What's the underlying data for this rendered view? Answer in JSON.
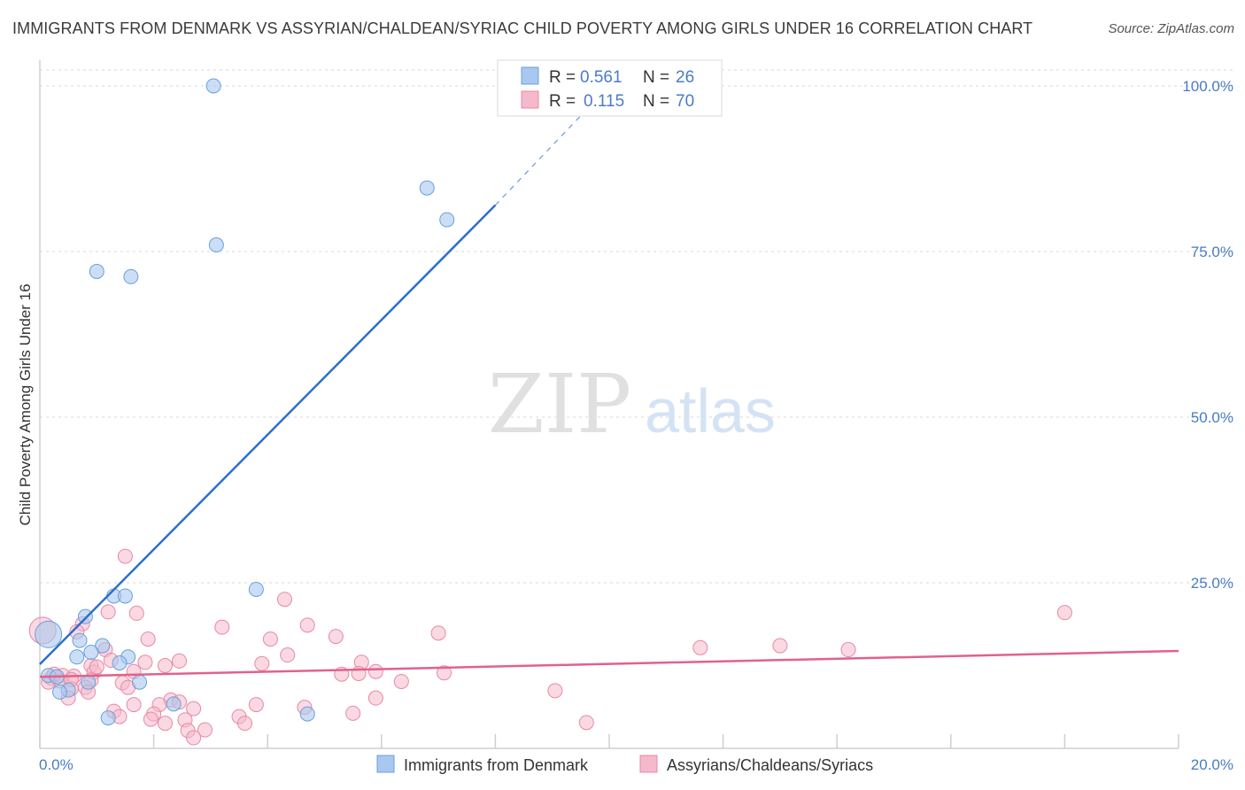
{
  "header": {
    "title": "IMMIGRANTS FROM DENMARK VS ASSYRIAN/CHALDEAN/SYRIAC CHILD POVERTY AMONG GIRLS UNDER 16 CORRELATION CHART",
    "source": "Source: ZipAtlas.com"
  },
  "watermark": {
    "zip": "ZIP",
    "atlas": "atlas"
  },
  "colors": {
    "blue_fill": "#a9c8ef",
    "blue_stroke": "#6a9fdc",
    "blue_line": "#2c6fcb",
    "pink_fill": "#f5b9cb",
    "pink_stroke": "#e888a6",
    "pink_line": "#e0628c",
    "grid": "#d9d9d9",
    "tick_label": "#4a7cc4"
  },
  "chart_data": {
    "type": "scatter",
    "title": "IMMIGRANTS FROM DENMARK VS ASSYRIAN/CHALDEAN/SYRIAC CHILD POVERTY AMONG GIRLS UNDER 16 CORRELATION CHART",
    "xlabel": "",
    "ylabel": "Child Poverty Among Girls Under 16",
    "xlim": [
      0,
      20
    ],
    "ylim": [
      0,
      100
    ],
    "x_tick_labels": [
      "0.0%",
      "20.0%"
    ],
    "y_ticks": [
      25,
      50,
      75,
      100
    ],
    "y_tick_labels": [
      "25.0%",
      "50.0%",
      "75.0%",
      "100.0%"
    ],
    "grid": true,
    "legend_placement": "top-center",
    "series": [
      {
        "name": "Immigrants from Denmark",
        "R": "0.561",
        "N": "26",
        "color": "blue",
        "points": [
          [
            3.05,
            100.0
          ],
          [
            6.8,
            84.6
          ],
          [
            7.15,
            79.8
          ],
          [
            3.1,
            76.0
          ],
          [
            1.0,
            72.0
          ],
          [
            1.6,
            71.2
          ],
          [
            1.3,
            23.0
          ],
          [
            1.5,
            23.0
          ],
          [
            3.8,
            24.0
          ],
          [
            0.8,
            19.9
          ],
          [
            0.7,
            16.3
          ],
          [
            1.1,
            15.5
          ],
          [
            0.9,
            14.5
          ],
          [
            0.65,
            13.8
          ],
          [
            1.55,
            13.8
          ],
          [
            1.4,
            12.9
          ],
          [
            0.15,
            17.2
          ],
          [
            0.15,
            11.0
          ],
          [
            0.3,
            10.8
          ],
          [
            0.85,
            10.0
          ],
          [
            1.75,
            10.0
          ],
          [
            0.5,
            8.8
          ],
          [
            0.35,
            8.5
          ],
          [
            2.35,
            6.7
          ],
          [
            1.2,
            4.6
          ],
          [
            4.7,
            5.2
          ]
        ],
        "trend": {
          "x0": 0,
          "y0": 12.7,
          "x1": 8.0,
          "y1": 82.0,
          "dashed_to": [
            9.5,
            95.5
          ]
        }
      },
      {
        "name": "Assyrians/Chaldeans/Syriacs",
        "R": "0.115",
        "N": "70",
        "color": "pink",
        "points": [
          [
            0.05,
            17.8
          ],
          [
            1.5,
            29.0
          ],
          [
            4.3,
            22.5
          ],
          [
            18.0,
            20.5
          ],
          [
            1.2,
            20.6
          ],
          [
            1.7,
            20.4
          ],
          [
            0.75,
            18.8
          ],
          [
            3.2,
            18.3
          ],
          [
            4.7,
            18.6
          ],
          [
            0.65,
            17.6
          ],
          [
            7.0,
            17.4
          ],
          [
            5.2,
            16.9
          ],
          [
            1.9,
            16.5
          ],
          [
            4.05,
            16.5
          ],
          [
            11.6,
            15.2
          ],
          [
            13.0,
            15.5
          ],
          [
            14.2,
            14.9
          ],
          [
            1.15,
            14.9
          ],
          [
            1.25,
            13.3
          ],
          [
            0.9,
            12.5
          ],
          [
            1.85,
            13.0
          ],
          [
            2.2,
            12.5
          ],
          [
            2.45,
            13.2
          ],
          [
            4.35,
            14.1
          ],
          [
            3.9,
            12.8
          ],
          [
            5.65,
            13.0
          ],
          [
            0.95,
            11.5
          ],
          [
            1.65,
            11.6
          ],
          [
            0.4,
            11.0
          ],
          [
            0.6,
            10.9
          ],
          [
            0.2,
            10.6
          ],
          [
            0.35,
            10.2
          ],
          [
            0.15,
            10.0
          ],
          [
            0.9,
            10.3
          ],
          [
            1.45,
            9.9
          ],
          [
            5.3,
            11.2
          ],
          [
            5.6,
            11.3
          ],
          [
            5.9,
            11.6
          ],
          [
            7.1,
            11.4
          ],
          [
            6.35,
            10.1
          ],
          [
            0.55,
            9.0
          ],
          [
            0.8,
            9.2
          ],
          [
            0.85,
            8.5
          ],
          [
            1.55,
            9.2
          ],
          [
            0.5,
            7.6
          ],
          [
            1.65,
            6.6
          ],
          [
            2.3,
            7.3
          ],
          [
            2.45,
            7.0
          ],
          [
            5.9,
            7.6
          ],
          [
            9.05,
            8.7
          ],
          [
            1.3,
            5.6
          ],
          [
            1.4,
            4.8
          ],
          [
            2.1,
            6.6
          ],
          [
            2.7,
            6.0
          ],
          [
            3.5,
            4.8
          ],
          [
            4.65,
            6.2
          ],
          [
            5.5,
            5.3
          ],
          [
            2.0,
            5.2
          ],
          [
            2.55,
            4.3
          ],
          [
            1.95,
            4.4
          ],
          [
            2.2,
            3.8
          ],
          [
            3.6,
            3.8
          ],
          [
            2.6,
            2.7
          ],
          [
            2.9,
            2.8
          ],
          [
            2.7,
            1.6
          ],
          [
            9.6,
            3.9
          ],
          [
            0.25,
            11.2
          ],
          [
            0.55,
            10.4
          ],
          [
            1.0,
            12.3
          ],
          [
            3.8,
            6.6
          ]
        ],
        "trend": {
          "x0": 0,
          "y0": 10.8,
          "x1": 20,
          "y1": 14.7
        }
      }
    ]
  }
}
